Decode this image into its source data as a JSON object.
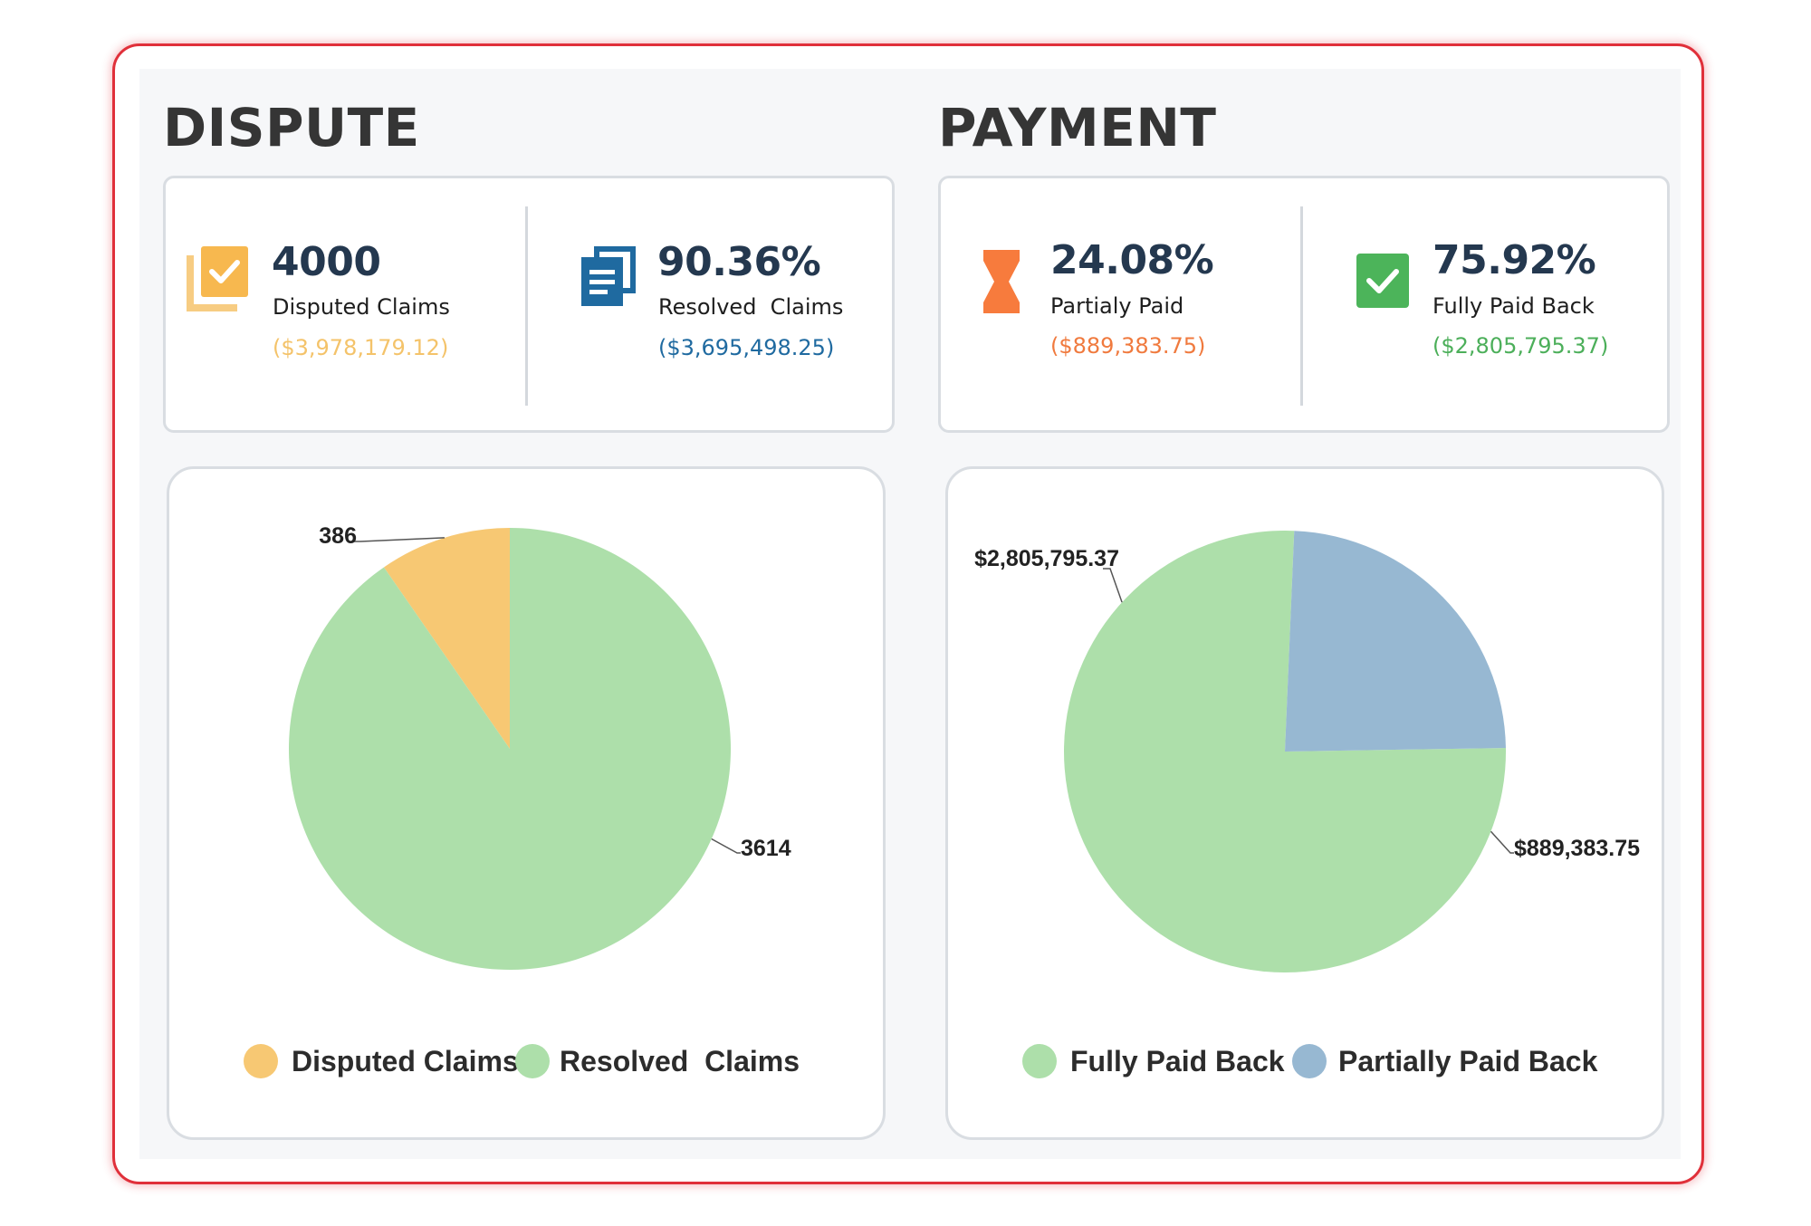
{
  "dispute": {
    "title": "DISPUTE",
    "kpis": [
      {
        "value": "4000",
        "label": "Disputed Claims",
        "amount": "($3,978,179.12)",
        "amount_color": "#f4c36a",
        "icon": "checked-documents-icon",
        "icon_color": "#f7b84f"
      },
      {
        "value": "90.36%",
        "label": "Resolved  Claims",
        "amount": "($3,695,498.25)",
        "amount_color": "#1f6aa0",
        "icon": "documents-icon",
        "icon_color": "#1f6aa0"
      }
    ]
  },
  "payment": {
    "title": "PAYMENT",
    "kpis": [
      {
        "value": "24.08%",
        "label": "Partialy Paid",
        "amount": "($889,383.75)",
        "amount_color": "#f07a3e",
        "icon": "hourglass-icon",
        "icon_color": "#f77b3d"
      },
      {
        "value": "75.92%",
        "label": "Fully Paid Back",
        "amount": "($2,805,795.37)",
        "amount_color": "#4caf5a",
        "icon": "checkmark-icon",
        "icon_color": "#4cb45a"
      }
    ]
  },
  "chart_data": [
    {
      "type": "pie",
      "slices": [
        {
          "name": "Disputed Claims",
          "value": 386,
          "label": "386",
          "color": "#f7c873"
        },
        {
          "name": "Resolved  Claims",
          "value": 3614,
          "label": "3614",
          "color": "#addfaa"
        }
      ],
      "legend": {
        "placement": "bottom",
        "items": [
          "Disputed Claims",
          "Resolved  Claims"
        ]
      }
    },
    {
      "type": "pie",
      "slices": [
        {
          "name": "Fully Paid Back",
          "value": 2805795.37,
          "label": "$2,805,795.37",
          "color": "#addfaa"
        },
        {
          "name": "Partially Paid Back",
          "value": 889383.75,
          "label": "$889,383.75",
          "color": "#97b8d2"
        }
      ],
      "legend": {
        "placement": "bottom",
        "items": [
          "Fully Paid Back",
          "Partially Paid Back"
        ]
      }
    }
  ]
}
